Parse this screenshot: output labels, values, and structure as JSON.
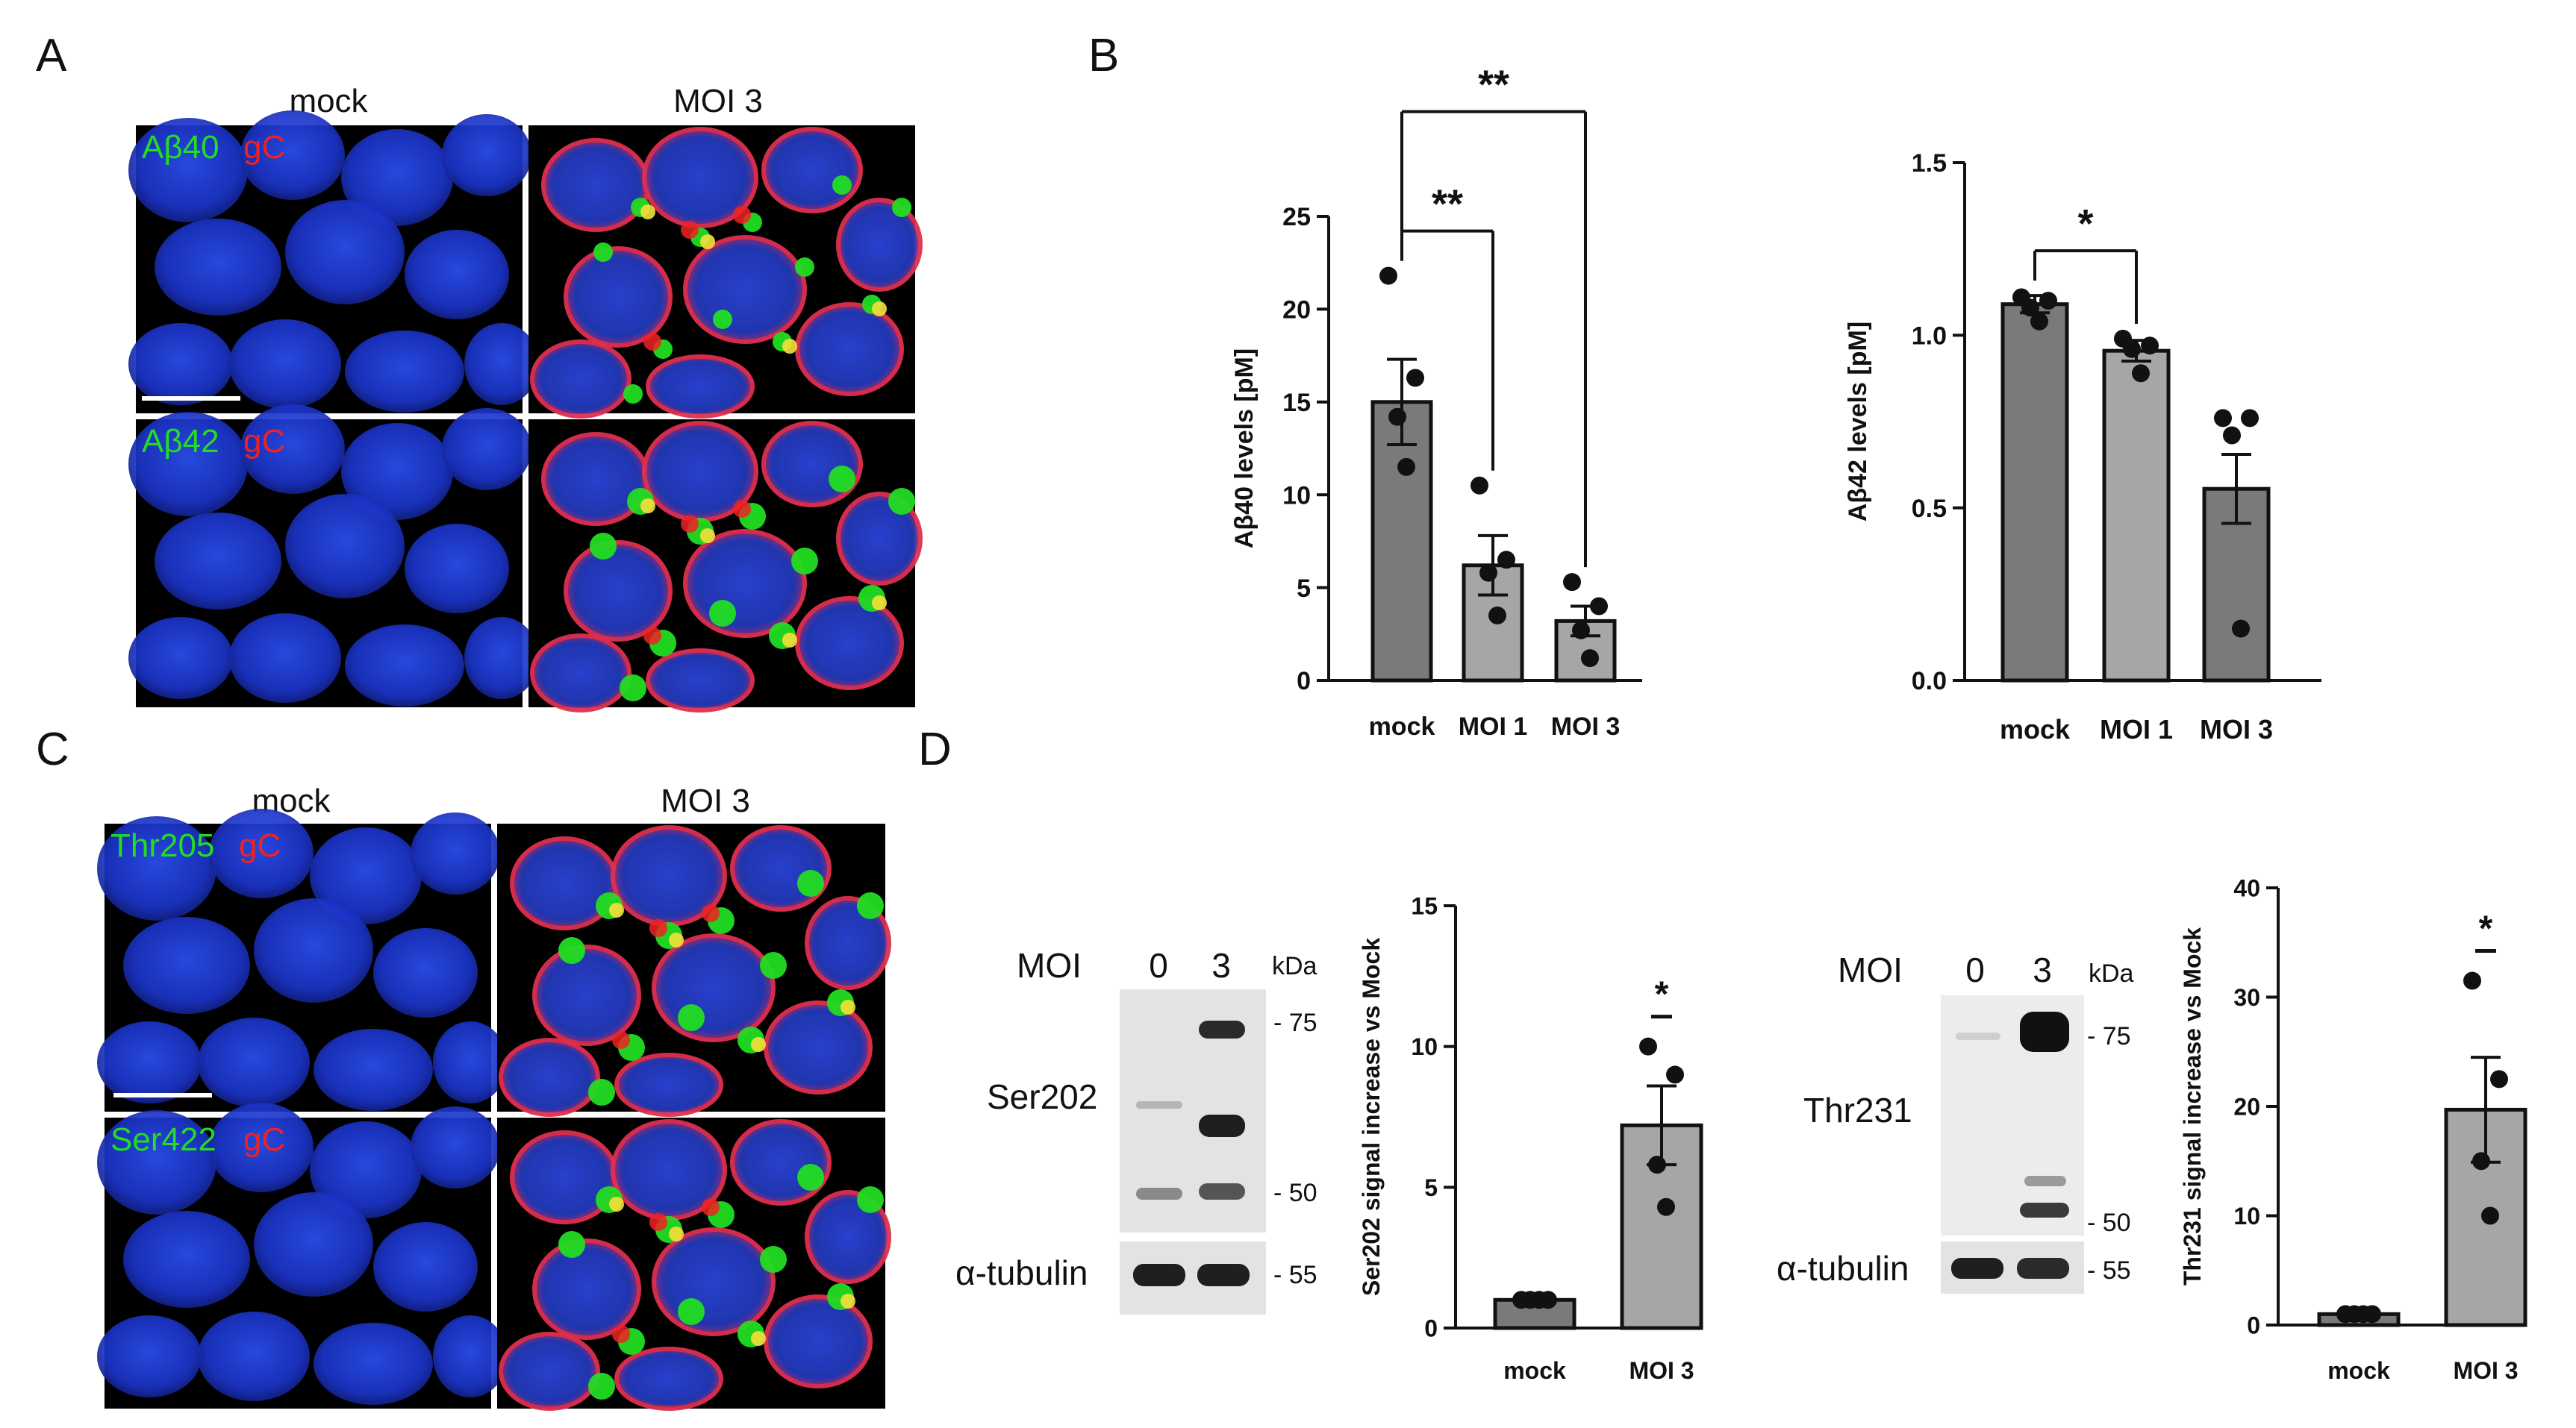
{
  "panels": {
    "A": {
      "letter": "A",
      "columns": [
        "mock",
        "MOI 3"
      ],
      "rows": [
        {
          "green": "Aβ40",
          "red": "gC"
        },
        {
          "green": "Aβ42",
          "red": "gC"
        }
      ]
    },
    "B": {
      "letter": "B"
    },
    "C": {
      "letter": "C",
      "columns": [
        "mock",
        "MOI 3"
      ],
      "rows": [
        {
          "green": "Thr205",
          "red": "gC"
        },
        {
          "green": "Ser422",
          "red": "gC"
        }
      ]
    },
    "D": {
      "letter": "D",
      "blots": [
        {
          "moi_label": "MOI",
          "lanes": [
            "0",
            "3"
          ],
          "kda": "kDa",
          "target": "Ser202",
          "loading": "α-tubulin",
          "markers": [
            "- 75",
            "- 50"
          ],
          "loading_marker": "- 55"
        },
        {
          "moi_label": "MOI",
          "lanes": [
            "0",
            "3"
          ],
          "kda": "kDa",
          "target": "Thr231",
          "loading": "α-tubulin",
          "markers": [
            "- 75",
            "- 50"
          ],
          "loading_marker": "- 55"
        }
      ]
    }
  },
  "colors": {
    "dapi": "#1f3fd6",
    "green": "#22dd22",
    "red": "#ee2222",
    "yellow": "#f5e03a",
    "bar_dark": "#7a7a7a",
    "bar_light": "#a6a6a6",
    "axis": "#111111"
  },
  "chart_data": [
    {
      "type": "bar",
      "panel": "B",
      "categories": [
        "mock",
        "MOI 1",
        "MOI 3"
      ],
      "values": [
        15.0,
        6.2,
        3.2
      ],
      "errors": [
        2.3,
        1.6,
        0.8
      ],
      "points": [
        [
          21.8,
          16.3,
          14.2,
          11.5
        ],
        [
          10.5,
          6.5,
          5.8,
          3.5
        ],
        [
          5.3,
          4.0,
          2.7,
          1.2
        ]
      ],
      "xlabel": "",
      "ylabel": "Aβ40 levels [pM]",
      "ylim": [
        0,
        25
      ],
      "yticks": [
        0,
        5,
        10,
        15,
        20,
        25
      ],
      "significance": [
        {
          "from": "mock",
          "to": "MOI 1",
          "label": "**"
        },
        {
          "from": "mock",
          "to": "MOI 3",
          "label": "**"
        }
      ]
    },
    {
      "type": "bar",
      "panel": "B",
      "categories": [
        "mock",
        "MOI 1",
        "MOI 3"
      ],
      "values": [
        1.09,
        0.955,
        0.555
      ],
      "errors": [
        0.025,
        0.03,
        0.1
      ],
      "points": [
        [
          1.11,
          1.1,
          1.08,
          1.04
        ],
        [
          0.99,
          0.97,
          0.96,
          0.89
        ],
        [
          0.76,
          0.76,
          0.71,
          0.15
        ]
      ],
      "xlabel": "",
      "ylabel": "Aβ42 levels [pM]",
      "ylim": [
        0,
        1.5
      ],
      "yticks": [
        "0.0",
        "0.5",
        "1.0",
        "1.5"
      ],
      "significance": [
        {
          "from": "mock",
          "to": "MOI 1",
          "label": "*"
        }
      ]
    },
    {
      "type": "bar",
      "panel": "D",
      "categories": [
        "mock",
        "MOI 3"
      ],
      "values": [
        1.0,
        7.2
      ],
      "errors": [
        0.05,
        1.4
      ],
      "points": [
        [
          1.0,
          1.0,
          1.0,
          1.0
        ],
        [
          10.0,
          9.0,
          5.8,
          4.3
        ]
      ],
      "xlabel": "",
      "ylabel": "Ser202 signal increase vs Mock",
      "ylim": [
        0,
        15
      ],
      "yticks": [
        0,
        5,
        10,
        15
      ],
      "significance": [
        {
          "over": "MOI 3",
          "label": "*"
        }
      ]
    },
    {
      "type": "bar",
      "panel": "D",
      "categories": [
        "mock",
        "MOI 3"
      ],
      "values": [
        1.0,
        19.7
      ],
      "errors": [
        0.3,
        4.8
      ],
      "points": [
        [
          1.0,
          1.0,
          1.0,
          1.0
        ],
        [
          31.5,
          22.5,
          15.0,
          10.0
        ]
      ],
      "xlabel": "",
      "ylabel": "Thr231 signal increase vs Mock",
      "ylim": [
        0,
        40
      ],
      "yticks": [
        0,
        10,
        20,
        30,
        40
      ],
      "significance": [
        {
          "over": "MOI 3",
          "label": "*"
        }
      ]
    }
  ]
}
